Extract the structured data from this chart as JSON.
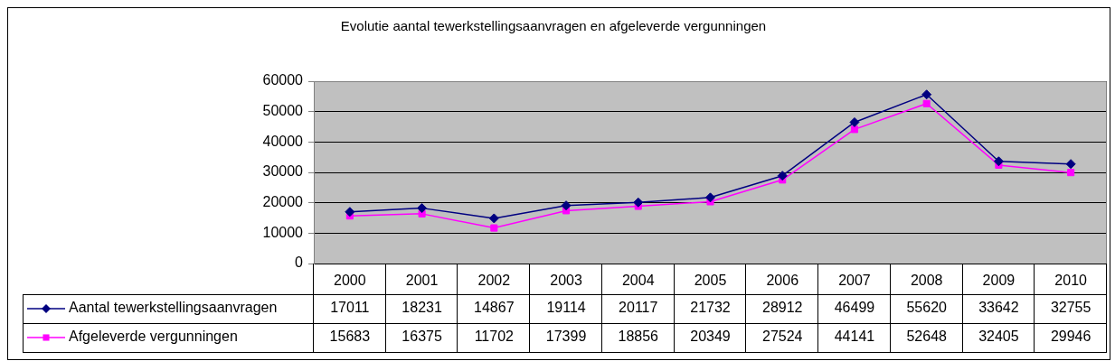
{
  "chart_data": {
    "type": "line",
    "title": "Evolutie aantal tewerkstellingsaanvragen en afgeleverde vergunningen",
    "categories": [
      "2000",
      "2001",
      "2002",
      "2003",
      "2004",
      "2005",
      "2006",
      "2007",
      "2008",
      "2009",
      "2010"
    ],
    "series": [
      {
        "name": "Aantal tewerkstellingsaanvragen",
        "color": "#000080",
        "marker": "diamond",
        "values": [
          17011,
          18231,
          14867,
          19114,
          20117,
          21732,
          28912,
          46499,
          55620,
          33642,
          32755
        ]
      },
      {
        "name": "Afgeleverde vergunningen",
        "color": "#ff00ff",
        "marker": "square",
        "values": [
          15683,
          16375,
          11702,
          17399,
          18856,
          20349,
          27524,
          44141,
          52648,
          32405,
          29946
        ]
      }
    ],
    "ylim": [
      0,
      60000
    ],
    "yticks": [
      0,
      10000,
      20000,
      30000,
      40000,
      50000,
      60000
    ],
    "grid": "y",
    "legend": "bottom left",
    "data_labels": true
  }
}
